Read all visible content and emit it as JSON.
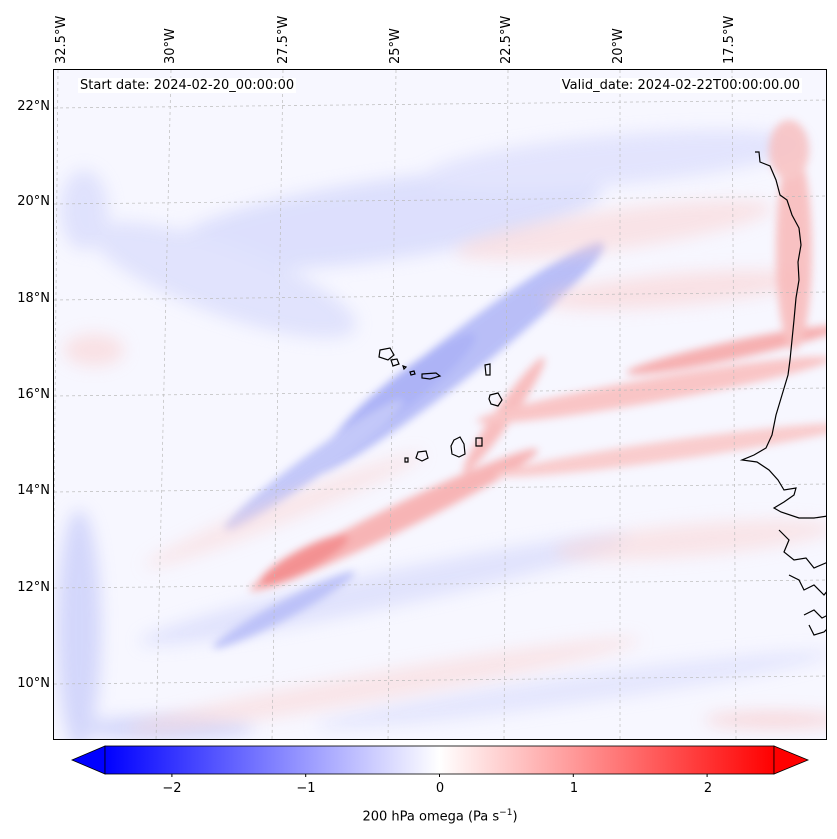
{
  "map": {
    "start_date": "Start date: 2024-02-20_00:00:00",
    "valid_date": "Valid_date: 2024-02-22T00:00:00.00",
    "lon_labels": [
      "32.5°W",
      "30°W",
      "27.5°W",
      "25°W",
      "22.5°W",
      "20°W",
      "17.5°W"
    ],
    "lat_labels": [
      "22°N",
      "20°N",
      "18°N",
      "16°N",
      "14°N",
      "12°N",
      "10°N"
    ],
    "colors": {
      "positive": "#ff0000",
      "negative": "#0000ff",
      "neutral": "#ffffff",
      "coastline": "#000000",
      "grid": "#bbbbbb"
    }
  },
  "colorbar": {
    "ticks": [
      "−2",
      "−1",
      "0",
      "1",
      "2"
    ],
    "tick_values": [
      -2,
      -1,
      0,
      1,
      2
    ],
    "range": [
      -2.5,
      2.5
    ],
    "label_main": "200 hPa omega (Pa s",
    "label_sup": "−1",
    "label_end": ")"
  }
}
